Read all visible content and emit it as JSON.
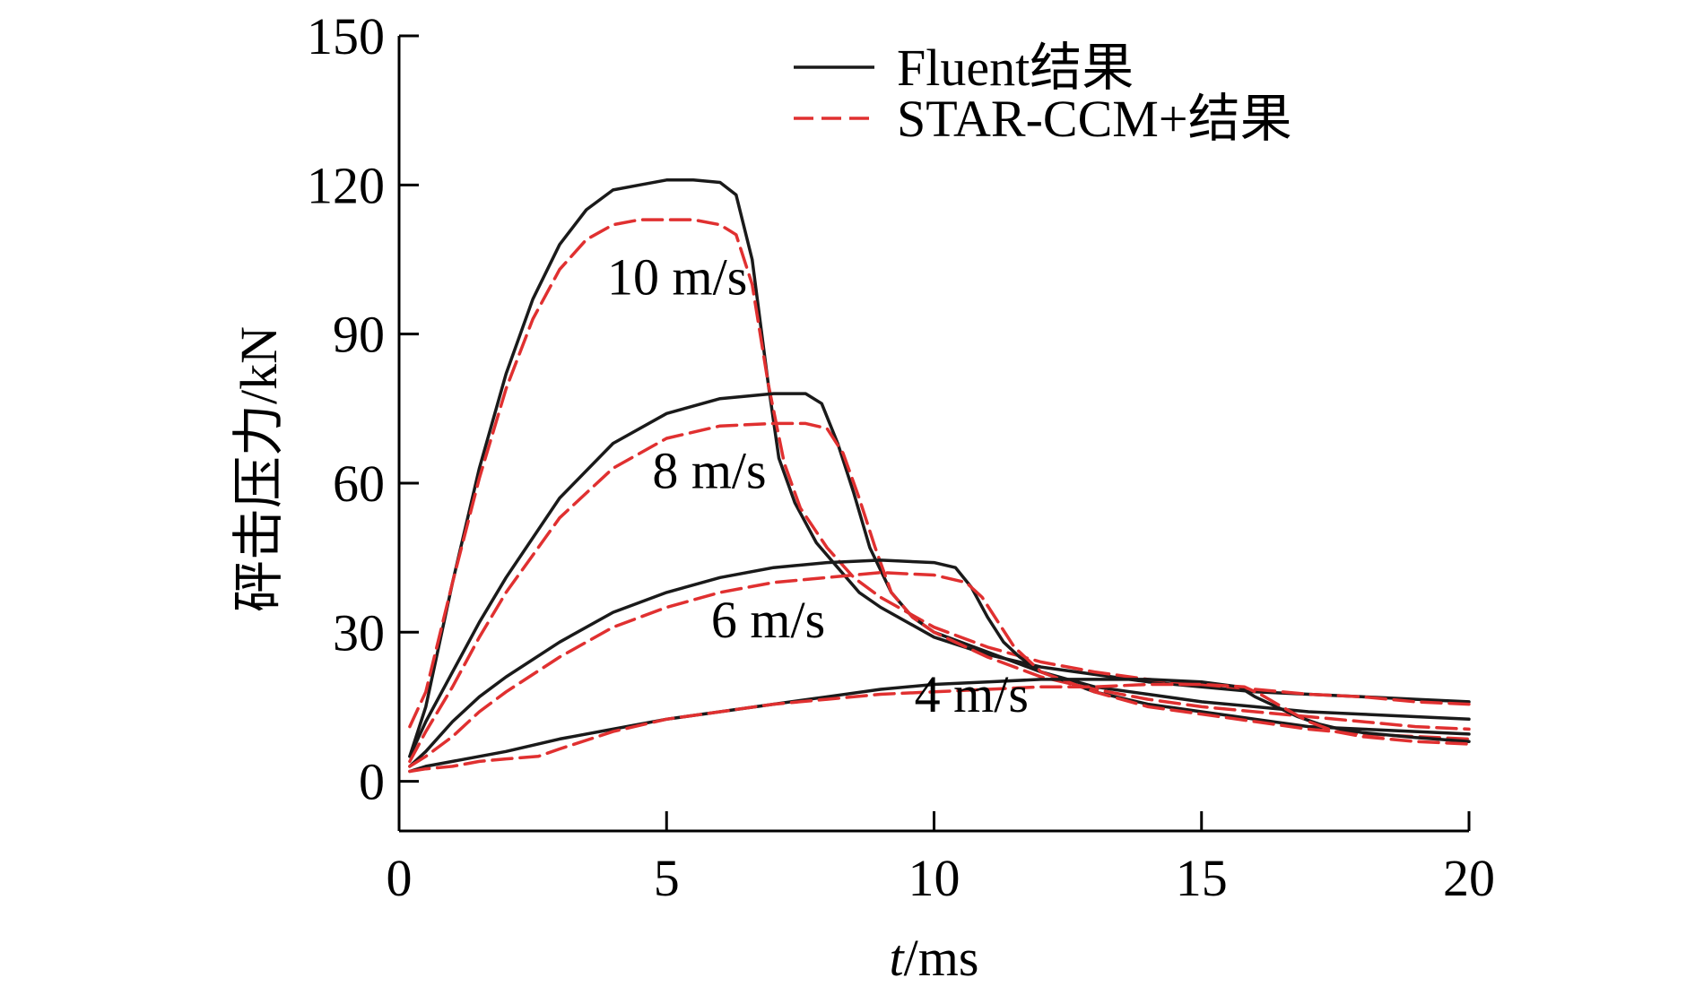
{
  "chart_data": {
    "type": "line",
    "title": "",
    "xlabel_italic": "t",
    "xlabel_unit": "/ms",
    "ylabel": "砰击压力/kN",
    "xlim": [
      0,
      20
    ],
    "ylim": [
      -10,
      150
    ],
    "xticks": [
      0,
      5,
      10,
      15,
      20
    ],
    "xtick_labels": [
      "0",
      "5",
      "10",
      "15",
      "20"
    ],
    "yticks": [
      0,
      30,
      60,
      90,
      120,
      150
    ],
    "ytick_labels": [
      "0",
      "30",
      "60",
      "90",
      "120",
      "150"
    ],
    "grid": false,
    "legend_position": "top-right",
    "legend": [
      {
        "label": "Fluent结果",
        "color": "#1a1a1a",
        "dash": "solid"
      },
      {
        "label": "STAR-CCM+结果",
        "color": "#e03030",
        "dash": "dashed"
      }
    ],
    "annotations": [
      {
        "text": "10 m/s",
        "x": 5.2,
        "y": 98
      },
      {
        "text": "8 m/s",
        "x": 5.8,
        "y": 59
      },
      {
        "text": "6 m/s",
        "x": 6.9,
        "y": 29
      },
      {
        "text": "4 m/s",
        "x": 10.7,
        "y": 14
      }
    ],
    "series": [
      {
        "name": "10 m/s Fluent",
        "color": "#1a1a1a",
        "dash": "solid",
        "x": [
          0.2,
          0.5,
          1,
          1.5,
          2,
          2.5,
          3,
          3.5,
          4,
          4.5,
          5,
          5.5,
          6,
          6.3,
          6.6,
          6.9,
          7.1,
          7.4,
          7.8,
          8.2,
          8.6,
          9,
          10,
          11,
          12,
          13,
          14,
          15,
          16,
          17,
          18,
          19,
          20
        ],
        "y": [
          5,
          15,
          40,
          63,
          82,
          97,
          108,
          115,
          119,
          120,
          121,
          121,
          120.5,
          118,
          105,
          80,
          65,
          56,
          48,
          43,
          38,
          35,
          29,
          25.5,
          23,
          21.5,
          20,
          19,
          18,
          17.5,
          17,
          16.5,
          16
        ]
      },
      {
        "name": "10 m/s STAR-CCM+",
        "color": "#e03030",
        "dash": "dashed",
        "x": [
          0.2,
          0.5,
          1,
          1.5,
          2,
          2.5,
          3,
          3.5,
          4,
          4.5,
          5,
          5.5,
          6,
          6.3,
          6.6,
          6.9,
          7.2,
          7.5,
          8,
          8.5,
          9,
          10,
          11,
          12,
          13,
          14,
          15,
          16,
          17,
          18,
          19,
          20
        ],
        "y": [
          11,
          18,
          40,
          61,
          79,
          93,
          103,
          109,
          112,
          113,
          113,
          113,
          112,
          110,
          100,
          80,
          64,
          55,
          47,
          41,
          37,
          31,
          27,
          24,
          22,
          20.5,
          19.5,
          18.5,
          17.5,
          17,
          16,
          15.5
        ]
      },
      {
        "name": "8 m/s Fluent",
        "color": "#1a1a1a",
        "dash": "solid",
        "x": [
          0.2,
          0.5,
          1,
          1.5,
          2,
          3,
          4,
          5,
          6,
          7,
          7.6,
          7.9,
          8.2,
          8.5,
          8.8,
          9.2,
          9.6,
          10,
          11,
          12,
          13,
          14,
          15,
          16,
          17,
          18,
          19,
          20
        ],
        "y": [
          5,
          12,
          22,
          32,
          41,
          57,
          68,
          74,
          77,
          78,
          78,
          76,
          68,
          58,
          47,
          38,
          33,
          30,
          26,
          22,
          19,
          17.5,
          16,
          15,
          14,
          13.5,
          13,
          12.5
        ]
      },
      {
        "name": "8 m/s STAR-CCM+",
        "color": "#e03030",
        "dash": "dashed",
        "x": [
          0.2,
          0.5,
          1,
          1.5,
          2,
          3,
          4,
          5,
          6,
          7,
          7.6,
          8,
          8.3,
          8.6,
          8.9,
          9.2,
          9.6,
          10,
          11,
          12,
          13,
          14,
          15,
          16,
          17,
          18,
          19,
          20
        ],
        "y": [
          4,
          10,
          19,
          29,
          38,
          53,
          63,
          69,
          71.5,
          72,
          72,
          71,
          66,
          57,
          47,
          38,
          33,
          30,
          25,
          21,
          18.5,
          16.5,
          15,
          14,
          13,
          12,
          11,
          10.5
        ]
      },
      {
        "name": "6 m/s Fluent",
        "color": "#1a1a1a",
        "dash": "solid",
        "x": [
          0.2,
          0.5,
          1,
          1.5,
          2,
          3,
          4,
          5,
          6,
          7,
          8,
          9,
          10,
          10.4,
          10.7,
          11,
          11.3,
          11.6,
          12,
          13,
          14,
          15,
          16,
          17,
          18,
          19,
          20
        ],
        "y": [
          3,
          6,
          12,
          17,
          21,
          28,
          34,
          38,
          41,
          43,
          44,
          44.5,
          44,
          43,
          39,
          33,
          28,
          25,
          22,
          18,
          15.5,
          14,
          12.5,
          11,
          10.5,
          10,
          9.5
        ]
      },
      {
        "name": "6 m/s STAR-CCM+",
        "color": "#e03030",
        "dash": "dashed",
        "x": [
          0.2,
          0.5,
          1,
          1.5,
          2,
          3,
          4,
          5,
          6,
          7,
          8,
          9,
          10,
          10.6,
          10.9,
          11.2,
          11.5,
          11.8,
          12,
          13,
          14,
          15,
          16,
          17,
          18,
          19,
          20
        ],
        "y": [
          3,
          5,
          9,
          14,
          18,
          25,
          31,
          35,
          38,
          40,
          41,
          42,
          41.5,
          40,
          37,
          32,
          27,
          24,
          22,
          18,
          15,
          13.5,
          12,
          10.5,
          9.5,
          9,
          8.5
        ]
      },
      {
        "name": "4 m/s Fluent",
        "color": "#1a1a1a",
        "dash": "solid",
        "x": [
          0.2,
          0.5,
          1,
          2,
          3,
          4,
          5,
          6,
          7,
          8,
          9,
          10,
          11,
          12,
          13,
          14,
          15,
          15.7,
          16,
          16.4,
          16.8,
          17.2,
          17.6,
          18,
          19,
          20
        ],
        "y": [
          2,
          3,
          4,
          6,
          8.5,
          10.5,
          12.5,
          14,
          15.5,
          17,
          18.5,
          19.5,
          20,
          20.5,
          20.5,
          20.5,
          20,
          19,
          17,
          15,
          13,
          11.5,
          10.5,
          9.8,
          8.8,
          8
        ]
      },
      {
        "name": "4 m/s STAR-CCM+",
        "color": "#e03030",
        "dash": "dashed",
        "x": [
          0.2,
          0.5,
          1,
          1.5,
          2,
          2.6,
          3,
          4,
          5,
          6,
          7,
          8,
          9,
          10,
          11,
          12,
          13,
          14,
          15,
          15.8,
          16.1,
          16.5,
          17,
          17.5,
          18,
          19,
          20
        ],
        "y": [
          2,
          2.5,
          3,
          4,
          4.5,
          5,
          6.5,
          10,
          12.5,
          14,
          15.5,
          16.5,
          17.5,
          18,
          18.5,
          19,
          19,
          19.5,
          19.5,
          19,
          17.5,
          15,
          12,
          10,
          9,
          8,
          7.5
        ]
      }
    ]
  }
}
